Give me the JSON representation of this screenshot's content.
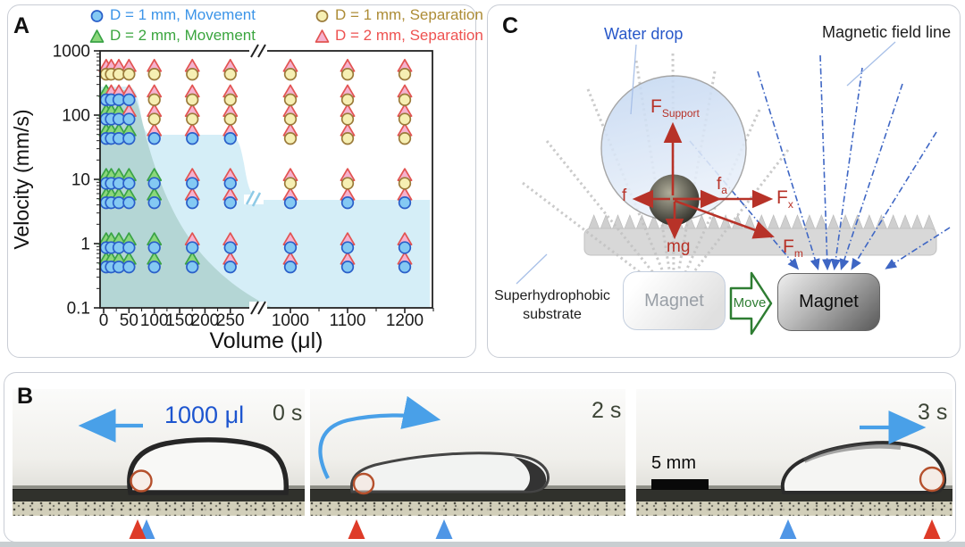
{
  "panelA": {
    "label": "A",
    "legend": [
      {
        "marker": "circle",
        "label": "D = 1 mm, Movement",
        "color": "#3b94e8",
        "fill": "#84c9f3",
        "stroke": "#2a5fc9"
      },
      {
        "marker": "circle",
        "label": "D = 1 mm, Separation",
        "color": "#ad8c36",
        "fill": "#f6efb3",
        "stroke": "#9b7b3a"
      },
      {
        "marker": "triangle",
        "label": "D = 2 mm, Movement",
        "color": "#3aa53e",
        "fill": "#8bd77b",
        "stroke": "#3aa346"
      },
      {
        "marker": "triangle",
        "label": "D = 2 mm, Separation",
        "color": "#ee5250",
        "fill": "#f5b2cf",
        "stroke": "#e25452"
      }
    ],
    "chart_data": {
      "type": "scatter",
      "title": "",
      "xlabel": "Volume (μl)",
      "ylabel": "Velocity (mm/s)",
      "x_scale": "linear-with-break",
      "y_scale": "log",
      "x_ticks": [
        0,
        50,
        100,
        150,
        200,
        250,
        1000,
        1100,
        1200
      ],
      "x_minor_ticks": [
        25,
        75,
        125,
        175,
        225,
        1050,
        1150,
        1250
      ],
      "x_break_after": 250,
      "y_ticks": [
        0.1,
        1,
        10,
        100,
        1000
      ],
      "ylim": [
        0.1,
        1000
      ],
      "volumes_tested": [
        5,
        15,
        30,
        50,
        100,
        175,
        250,
        1000,
        1100,
        1200
      ],
      "velocities_tested": [
        500,
        200,
        100,
        50,
        10,
        5,
        1,
        0.5
      ],
      "regions": [
        {
          "name": "movement-region-2mm",
          "color": "rgba(105,158,135,0.30)"
        },
        {
          "name": "movement-region-1mm",
          "color": "#d5eef7"
        }
      ],
      "series": [
        {
          "name": "D = 2 mm, Movement",
          "marker": "triangle",
          "fill": "#8bd77b",
          "stroke": "#3aa346",
          "points": [
            [
              5,
              200
            ],
            [
              5,
              100
            ],
            [
              15,
              100
            ],
            [
              30,
              100
            ],
            [
              5,
              50
            ],
            [
              15,
              50
            ],
            [
              30,
              50
            ],
            [
              50,
              50
            ],
            [
              5,
              10
            ],
            [
              15,
              10
            ],
            [
              30,
              10
            ],
            [
              50,
              10
            ],
            [
              100,
              10
            ],
            [
              5,
              5
            ],
            [
              15,
              5
            ],
            [
              30,
              5
            ],
            [
              50,
              5
            ],
            [
              100,
              5
            ],
            [
              5,
              1
            ],
            [
              15,
              1
            ],
            [
              30,
              1
            ],
            [
              50,
              1
            ],
            [
              100,
              1
            ],
            [
              5,
              0.5
            ],
            [
              15,
              0.5
            ],
            [
              30,
              0.5
            ],
            [
              50,
              0.5
            ],
            [
              100,
              0.5
            ],
            [
              175,
              0.5
            ]
          ]
        },
        {
          "name": "D = 2 mm, Separation",
          "marker": "triangle",
          "fill": "#f5b2cf",
          "stroke": "#e25452",
          "points": [
            [
              5,
              500
            ],
            [
              15,
              500
            ],
            [
              30,
              500
            ],
            [
              50,
              500
            ],
            [
              100,
              500
            ],
            [
              175,
              500
            ],
            [
              250,
              500
            ],
            [
              1000,
              500
            ],
            [
              1100,
              500
            ],
            [
              1200,
              500
            ],
            [
              15,
              200
            ],
            [
              30,
              200
            ],
            [
              50,
              200
            ],
            [
              100,
              200
            ],
            [
              175,
              200
            ],
            [
              250,
              200
            ],
            [
              1000,
              200
            ],
            [
              1100,
              200
            ],
            [
              1200,
              200
            ],
            [
              50,
              100
            ],
            [
              100,
              100
            ],
            [
              175,
              100
            ],
            [
              250,
              100
            ],
            [
              1000,
              100
            ],
            [
              1100,
              100
            ],
            [
              1200,
              100
            ],
            [
              100,
              50
            ],
            [
              175,
              50
            ],
            [
              250,
              50
            ],
            [
              1000,
              50
            ],
            [
              1100,
              50
            ],
            [
              1200,
              50
            ],
            [
              175,
              10
            ],
            [
              250,
              10
            ],
            [
              1000,
              10
            ],
            [
              1100,
              10
            ],
            [
              1200,
              10
            ],
            [
              175,
              5
            ],
            [
              250,
              5
            ],
            [
              1000,
              5
            ],
            [
              1100,
              5
            ],
            [
              1200,
              5
            ],
            [
              175,
              1
            ],
            [
              250,
              1
            ],
            [
              1000,
              1
            ],
            [
              1100,
              1
            ],
            [
              1200,
              1
            ],
            [
              250,
              0.5
            ],
            [
              1000,
              0.5
            ],
            [
              1100,
              0.5
            ],
            [
              1200,
              0.5
            ]
          ]
        },
        {
          "name": "D = 1 mm, Movement",
          "marker": "circle",
          "fill": "#84c9f3",
          "stroke": "#2a5fc9",
          "points": [
            [
              5,
              200
            ],
            [
              15,
              200
            ],
            [
              30,
              200
            ],
            [
              50,
              200
            ],
            [
              5,
              100
            ],
            [
              15,
              100
            ],
            [
              30,
              100
            ],
            [
              50,
              100
            ],
            [
              5,
              50
            ],
            [
              15,
              50
            ],
            [
              30,
              50
            ],
            [
              50,
              50
            ],
            [
              100,
              50
            ],
            [
              175,
              50
            ],
            [
              250,
              50
            ],
            [
              5,
              10
            ],
            [
              15,
              10
            ],
            [
              30,
              10
            ],
            [
              50,
              10
            ],
            [
              100,
              10
            ],
            [
              175,
              10
            ],
            [
              250,
              10
            ],
            [
              5,
              5
            ],
            [
              15,
              5
            ],
            [
              30,
              5
            ],
            [
              50,
              5
            ],
            [
              100,
              5
            ],
            [
              175,
              5
            ],
            [
              250,
              5
            ],
            [
              1000,
              5
            ],
            [
              1100,
              5
            ],
            [
              1200,
              5
            ],
            [
              5,
              1
            ],
            [
              15,
              1
            ],
            [
              30,
              1
            ],
            [
              50,
              1
            ],
            [
              100,
              1
            ],
            [
              175,
              1
            ],
            [
              250,
              1
            ],
            [
              1000,
              1
            ],
            [
              1100,
              1
            ],
            [
              1200,
              1
            ],
            [
              5,
              0.5
            ],
            [
              15,
              0.5
            ],
            [
              30,
              0.5
            ],
            [
              50,
              0.5
            ],
            [
              100,
              0.5
            ],
            [
              175,
              0.5
            ],
            [
              250,
              0.5
            ],
            [
              1000,
              0.5
            ],
            [
              1100,
              0.5
            ],
            [
              1200,
              0.5
            ]
          ]
        },
        {
          "name": "D = 1 mm, Separation",
          "marker": "circle",
          "fill": "#f6efb3",
          "stroke": "#9b7b3a",
          "points": [
            [
              5,
              500
            ],
            [
              15,
              500
            ],
            [
              30,
              500
            ],
            [
              50,
              500
            ],
            [
              100,
              500
            ],
            [
              175,
              500
            ],
            [
              250,
              500
            ],
            [
              1000,
              500
            ],
            [
              1100,
              500
            ],
            [
              1200,
              500
            ],
            [
              100,
              200
            ],
            [
              175,
              200
            ],
            [
              250,
              200
            ],
            [
              1000,
              200
            ],
            [
              1100,
              200
            ],
            [
              1200,
              200
            ],
            [
              100,
              100
            ],
            [
              175,
              100
            ],
            [
              250,
              100
            ],
            [
              1000,
              100
            ],
            [
              1100,
              100
            ],
            [
              1200,
              100
            ],
            [
              1000,
              50
            ],
            [
              1100,
              50
            ],
            [
              1200,
              50
            ],
            [
              1000,
              10
            ],
            [
              1100,
              10
            ],
            [
              1200,
              10
            ]
          ]
        }
      ]
    }
  },
  "panelC": {
    "label": "C",
    "annotations": {
      "water_drop": "Water drop",
      "field_line": "Magnetic field line",
      "substrate_line1": "Superhydrophobic",
      "substrate_line2": "substrate"
    },
    "forces": {
      "support": {
        "main": "F",
        "sub": "Support"
      },
      "f": {
        "main": "f",
        "sub": ""
      },
      "fa": {
        "main": "f",
        "sub": "a"
      },
      "fx": {
        "main": "F",
        "sub": "x"
      },
      "mg": {
        "main": "mg",
        "sub": ""
      },
      "fm": {
        "main": "F",
        "sub": "m"
      }
    },
    "magnet_left": "Magnet",
    "magnet_right": "Magnet",
    "move": "Move",
    "colors": {
      "force_arrow": "#b73228",
      "field_line_blue": "#3e66c4",
      "field_line_gray": "#c2c2c2"
    }
  },
  "panelB": {
    "label": "B",
    "volume_label": "1000 μl",
    "times": [
      "0 s",
      "2 s",
      "3 s"
    ],
    "scale_bar": "5 mm",
    "colors": {
      "motion_arrow": "#49a0e8",
      "bead_circle": "#b5502c",
      "marker_red": "#de3b28",
      "marker_blue": "#4f96e6"
    }
  }
}
